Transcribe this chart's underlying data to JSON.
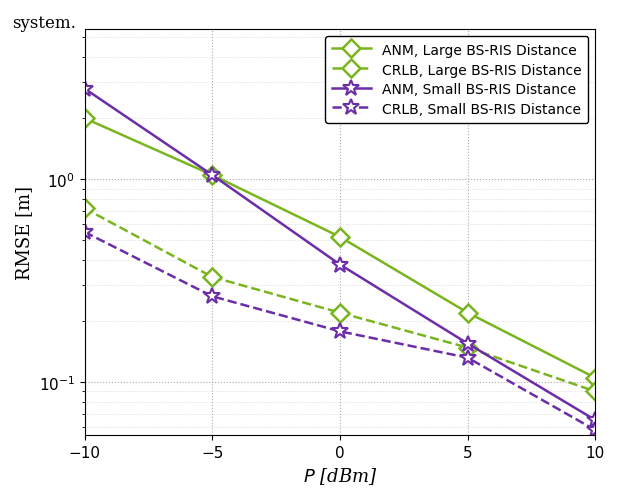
{
  "x": [
    -10,
    -5,
    0,
    5,
    10
  ],
  "anm_large": [
    2.0,
    1.05,
    0.52,
    0.22,
    0.105
  ],
  "crlb_large": [
    0.72,
    0.33,
    0.22,
    0.148,
    0.09
  ],
  "anm_small": [
    2.8,
    1.05,
    0.38,
    0.155,
    0.065
  ],
  "crlb_small": [
    0.55,
    0.265,
    0.178,
    0.132,
    0.058
  ],
  "color_green": "#7ab520",
  "color_purple": "#6b2da8",
  "xlabel": "$P$ [dBm]",
  "ylabel": "RMSE [m]",
  "ylim": [
    0.055,
    5.5
  ],
  "xlim": [
    -10,
    10
  ],
  "xticks": [
    -10,
    -5,
    0,
    5,
    10
  ],
  "legend_labels": [
    "ANM, Large BS-RIS Distance",
    "CRLB, Large BS-RIS Distance",
    "ANM, Small BS-RIS Distance",
    "CRLB, Small BS-RIS Distance"
  ]
}
